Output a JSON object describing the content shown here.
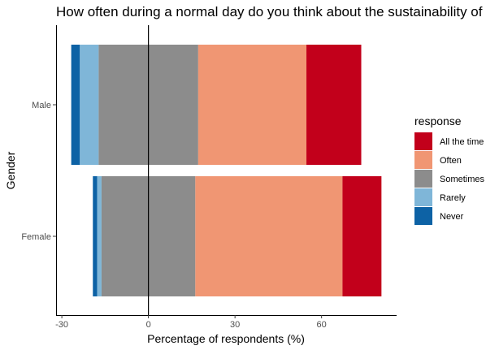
{
  "chart_data": {
    "type": "bar",
    "orientation": "horizontal-diverging",
    "title": "How often during a normal day do you think about the sustainability of",
    "xlabel": "Percentage of respondents (%)",
    "ylabel": "Gender",
    "xlim": [
      -32,
      86
    ],
    "xticks": [
      -30,
      0,
      30,
      60
    ],
    "xtick_labels": [
      "-30",
      "0",
      "30",
      "60"
    ],
    "categories": [
      "Male",
      "Female"
    ],
    "zero_line": 0,
    "legend_title": "response",
    "legend_position": "right",
    "legend": [
      {
        "name": "All the time",
        "color": "#c2001b"
      },
      {
        "name": "Often",
        "color": "#f09673"
      },
      {
        "name": "Sometimes",
        "color": "#8c8c8c"
      },
      {
        "name": "Rarely",
        "color": "#7fb6d8"
      },
      {
        "name": "Never",
        "color": "#0d62a5"
      }
    ],
    "series_order_left_to_right": [
      "Never",
      "Rarely",
      "Sometimes",
      "Often",
      "All the time"
    ],
    "sometimes_split_at_zero": true,
    "series": [
      {
        "name": "Never",
        "color": "#0d62a5",
        "values": [
          3.0,
          1.5
        ]
      },
      {
        "name": "Rarely",
        "color": "#7fb6d8",
        "values": [
          6.5,
          1.5
        ]
      },
      {
        "name": "Sometimes",
        "color": "#8c8c8c",
        "values": [
          34.5,
          32.5
        ]
      },
      {
        "name": "Often",
        "color": "#f09673",
        "values": [
          37.5,
          51.0
        ]
      },
      {
        "name": "All the time",
        "color": "#c2001b",
        "values": [
          19.0,
          13.5
        ]
      }
    ]
  }
}
